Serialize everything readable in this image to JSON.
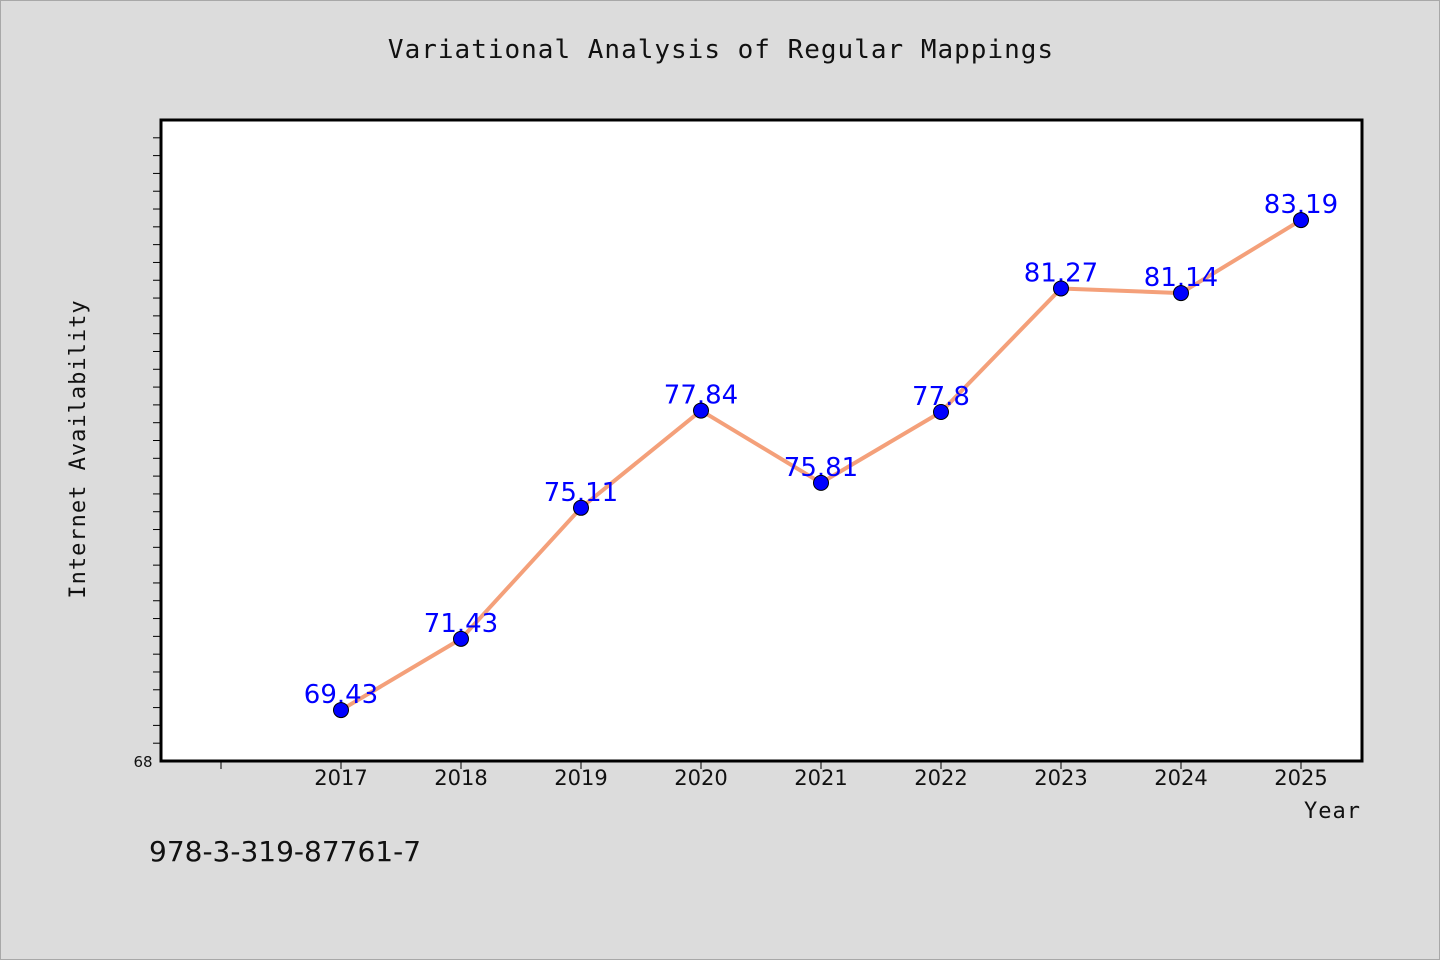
{
  "chart_data": {
    "type": "line",
    "title": "Variational Analysis of Regular Mappings",
    "xlabel": "Year",
    "ylabel": "Internet Availability",
    "categories": [
      "2017",
      "2018",
      "2019",
      "2020",
      "2021",
      "2022",
      "2023",
      "2024",
      "2025"
    ],
    "values": [
      69.43,
      71.43,
      75.11,
      77.84,
      75.81,
      77.8,
      81.27,
      81.14,
      83.19
    ],
    "data_labels": [
      "69.43",
      "71.43",
      "75.11",
      "77.84",
      "75.81",
      "77.8",
      "81.27",
      "81.14",
      "83.19"
    ],
    "y_tick_labels": [
      "68"
    ],
    "ylim": [
      68,
      86
    ],
    "grid": false,
    "legend": "none",
    "colors": {
      "line": "#f4a07a",
      "marker": "#0000ff",
      "data_label": "#0000ff",
      "plot_background": "#ffffff",
      "page_background": "#dcdcdc"
    }
  },
  "footer": {
    "isbn": "978-3-319-87761-7"
  }
}
